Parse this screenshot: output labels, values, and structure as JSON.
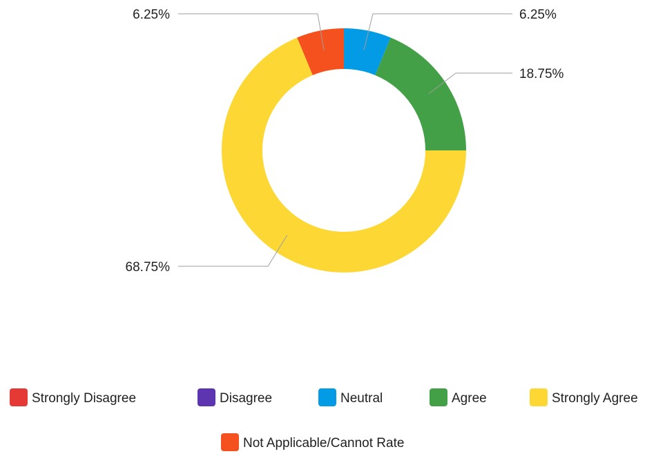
{
  "chart_data": {
    "type": "pie",
    "variant": "donut",
    "categories": [
      "Strongly Disagree",
      "Disagree",
      "Neutral",
      "Agree",
      "Strongly Agree",
      "Not Applicable/Cannot Rate"
    ],
    "values": [
      0,
      0,
      6.25,
      18.75,
      68.75,
      6.25
    ],
    "data_labels": [
      "",
      "",
      "6.25%",
      "18.75%",
      "68.75%",
      "6.25%"
    ],
    "unit": "%",
    "colors": [
      "#e53935",
      "#5e35b1",
      "#039be5",
      "#43a047",
      "#fdd835",
      "#f4511e"
    ],
    "legend_position": "bottom",
    "title": ""
  }
}
